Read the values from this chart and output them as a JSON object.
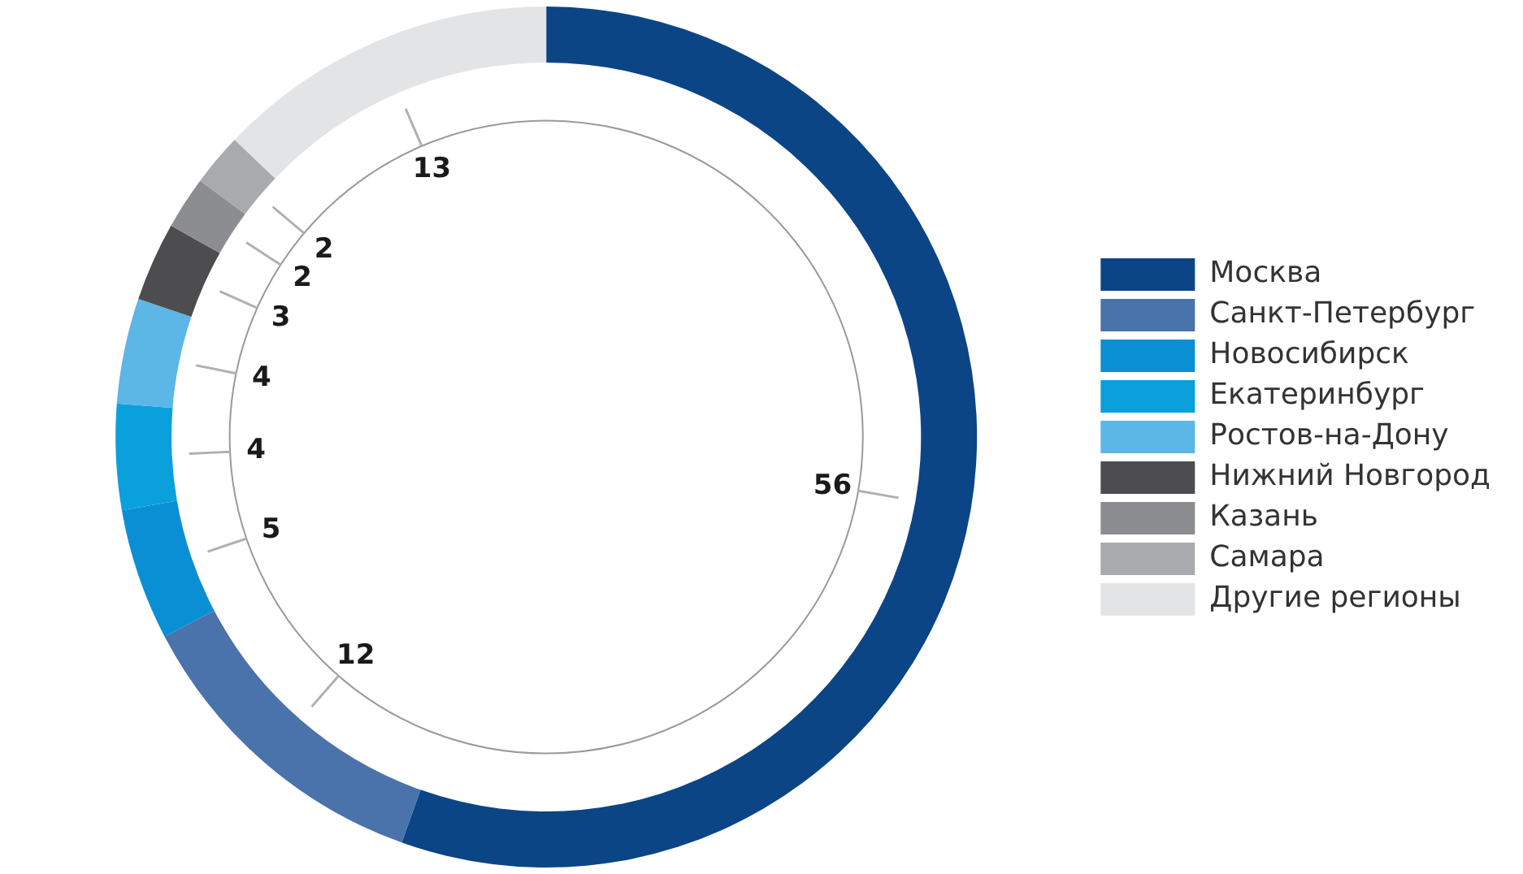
{
  "chart_data": {
    "type": "donut",
    "categories": [
      "Москва",
      "Санкт-Петербург",
      "Новосибирск",
      "Екатеринбург",
      "Ростов-на-Дону",
      "Нижний Новгород",
      "Казань",
      "Самара",
      "Другие регионы"
    ],
    "values": [
      56,
      12,
      5,
      4,
      4,
      3,
      2,
      2,
      13
    ],
    "colors": [
      "#0b4586",
      "#4a72ab",
      "#0b8fd4",
      "#0aa0dc",
      "#5cb6e6",
      "#4d4d4f",
      "#8c8d90",
      "#a9aaad",
      "#e3e4e6"
    ],
    "data_labels": true,
    "legend": "right"
  }
}
